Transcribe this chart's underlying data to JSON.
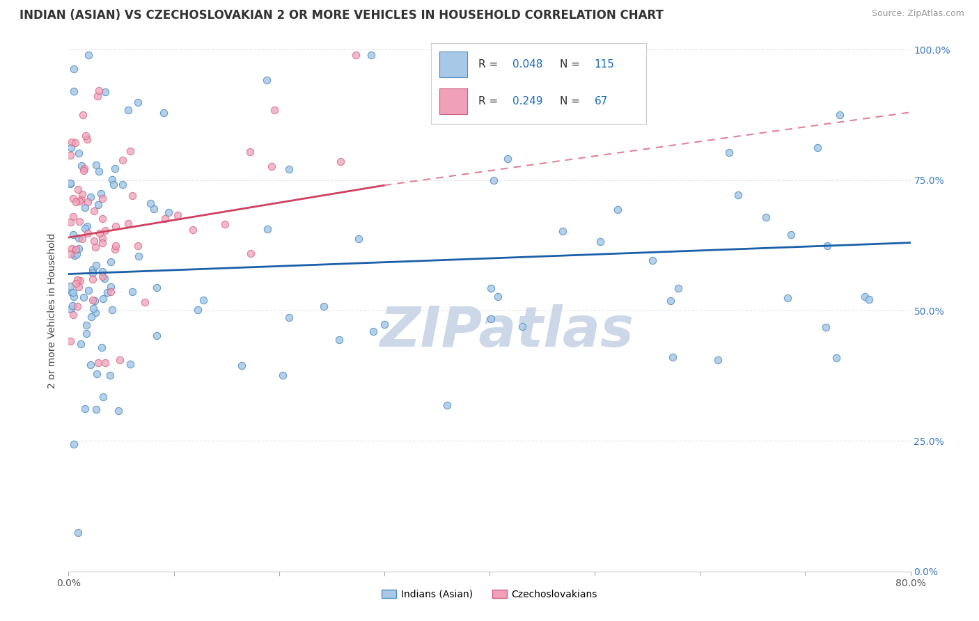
{
  "title": "INDIAN (ASIAN) VS CZECHOSLOVAKIAN 2 OR MORE VEHICLES IN HOUSEHOLD CORRELATION CHART",
  "source": "Source: ZipAtlas.com",
  "ylabel": "2 or more Vehicles in Household",
  "xlim": [
    0.0,
    80.0
  ],
  "ylim": [
    0.0,
    100.0
  ],
  "series_blue": {
    "color": "#a8c8e8",
    "edge_color": "#5090c0",
    "alpha": 0.85,
    "marker_size": 55
  },
  "series_pink": {
    "color": "#f0a0b8",
    "edge_color": "#d06080",
    "alpha": 0.75,
    "marker_size": 55
  },
  "trendline_blue": {
    "color": "#1a5fa8",
    "linewidth": 2.0
  },
  "trendline_pink_solid": {
    "color": "#d04060",
    "linewidth": 2.0
  },
  "trendline_pink_dashed": {
    "color": "#e08098",
    "linewidth": 1.5
  },
  "grid_color": "#e0e0e0",
  "background_color": "#ffffff",
  "watermark": "ZIPatlas",
  "watermark_color": "#ccd8e8",
  "blue_trendline": [
    0,
    57,
    80,
    63
  ],
  "pink_trendline_solid": [
    0,
    64,
    30,
    74
  ],
  "pink_trendline_dashed": [
    30,
    74,
    80,
    88
  ],
  "legend": {
    "r_blue": "0.048",
    "n_blue": "115",
    "r_pink": "0.249",
    "n_pink": "67"
  },
  "title_fontsize": 12,
  "axis_fontsize": 10,
  "tick_fontsize": 10
}
